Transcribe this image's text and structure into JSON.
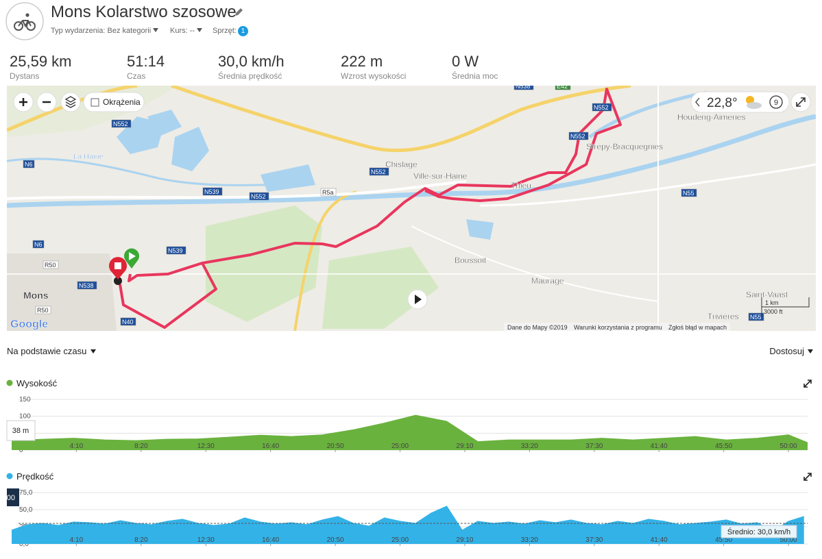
{
  "header": {
    "title": "Mons Kolarstwo szosowe",
    "event_type_label": "Typ wydarzenia:",
    "event_type": "Bez kategorii",
    "course_label": "Kurs:",
    "course": "--",
    "gear_label": "Sprzęt:",
    "gear_count": "1"
  },
  "stats": [
    {
      "value": "25,59 km",
      "label": "Dystans"
    },
    {
      "value": "51:14",
      "label": "Czas"
    },
    {
      "value": "30,0 km/h",
      "label": "Średnia prędkość"
    },
    {
      "value": "222 m",
      "label": "Wzrost wysokości"
    },
    {
      "value": "0 W",
      "label": "Średnia moc"
    }
  ],
  "map": {
    "laps_label": "Okrążenia",
    "temperature": "22,8°",
    "wind": "9",
    "places": [
      "Mons",
      "Boussoit",
      "Maurage",
      "Chislage",
      "Ville-sur-Haine",
      "Thieu",
      "Strépy-Bracquegnies",
      "Houdeng-Aimeries",
      "Saint-Vaast",
      "Trivières",
      "La Haine"
    ],
    "roads": [
      "N552",
      "N552",
      "N552",
      "N552",
      "N552",
      "N538",
      "N538",
      "N539",
      "N539",
      "N6",
      "N6",
      "R50",
      "R50",
      "N40",
      "N55",
      "N55",
      "E42",
      "R5a"
    ],
    "scale_metric": "1 km",
    "scale_imperial": "3000 ft",
    "logo": "Google",
    "attribution": "Dane do Mapy ©2019",
    "terms": "Warunki korzystania z programu",
    "report": "Zgłoś błąd w mapach"
  },
  "chart_controls": {
    "basis": "Na podstawie czasu",
    "customize": "Dostosuj"
  },
  "chart_data": [
    {
      "type": "area",
      "title": "Wysokość",
      "color": "#6ab23e",
      "grid": true,
      "tooltip": "38 m",
      "x": [
        0,
        120,
        240,
        360,
        480,
        600,
        720,
        840,
        960,
        1080,
        1200,
        1320,
        1440,
        1560,
        1680,
        1800,
        1920,
        2040,
        2160,
        2280,
        2400,
        2520,
        2640,
        2760,
        2880,
        3000,
        3074
      ],
      "values": [
        28,
        32,
        35,
        30,
        28,
        32,
        33,
        38,
        44,
        40,
        45,
        60,
        80,
        103,
        85,
        25,
        30,
        30,
        30,
        35,
        30,
        35,
        40,
        30,
        35,
        45,
        22
      ],
      "xlim": [
        0,
        3074
      ],
      "xticks": [
        {
          "value": 250,
          "label": "4:10"
        },
        {
          "value": 500,
          "label": "8:20"
        },
        {
          "value": 750,
          "label": "12:30"
        },
        {
          "value": 1000,
          "label": "16:40"
        },
        {
          "value": 1250,
          "label": "20:50"
        },
        {
          "value": 1500,
          "label": "25:00"
        },
        {
          "value": 1750,
          "label": "29:10"
        },
        {
          "value": 2000,
          "label": "33:20"
        },
        {
          "value": 2250,
          "label": "37:30"
        },
        {
          "value": 2500,
          "label": "41:40"
        },
        {
          "value": 2750,
          "label": "45:50"
        },
        {
          "value": 3000,
          "label": "50:00"
        }
      ],
      "ylim": [
        0,
        150
      ],
      "yticks": [
        0,
        50,
        100,
        150
      ]
    },
    {
      "type": "area",
      "title": "Prędkość",
      "color": "#33b2e8",
      "grid": true,
      "tooltip": "00",
      "x": [
        0,
        60,
        120,
        180,
        240,
        300,
        360,
        420,
        480,
        540,
        600,
        660,
        720,
        780,
        840,
        900,
        960,
        1020,
        1080,
        1140,
        1200,
        1260,
        1320,
        1380,
        1440,
        1500,
        1560,
        1620,
        1680,
        1740,
        1800,
        1860,
        1920,
        1980,
        2040,
        2100,
        2160,
        2220,
        2280,
        2340,
        2400,
        2460,
        2520,
        2580,
        2640,
        2700,
        2760,
        2820,
        2880,
        2940,
        3000,
        3060
      ],
      "values": [
        20,
        28,
        30,
        27,
        32,
        31,
        29,
        34,
        30,
        28,
        33,
        36,
        30,
        27,
        29,
        38,
        32,
        29,
        31,
        28,
        35,
        40,
        30,
        26,
        38,
        33,
        30,
        45,
        55,
        20,
        33,
        30,
        32,
        29,
        34,
        31,
        35,
        30,
        28,
        33,
        30,
        36,
        33,
        28,
        30,
        32,
        35,
        29,
        31,
        18,
        33,
        40
      ],
      "xlim": [
        0,
        3074
      ],
      "xticks": [
        {
          "value": 250,
          "label": "4:10"
        },
        {
          "value": 500,
          "label": "8:20"
        },
        {
          "value": 750,
          "label": "12:30"
        },
        {
          "value": 1000,
          "label": "16:40"
        },
        {
          "value": 1250,
          "label": "20:50"
        },
        {
          "value": 1500,
          "label": "25:00"
        },
        {
          "value": 1750,
          "label": "29:10"
        },
        {
          "value": 2000,
          "label": "33:20"
        },
        {
          "value": 2250,
          "label": "37:30"
        },
        {
          "value": 2500,
          "label": "41:40"
        },
        {
          "value": 2750,
          "label": "45:50"
        },
        {
          "value": 3000,
          "label": "50:00"
        }
      ],
      "ylim": [
        0,
        75
      ],
      "yticks": [
        {
          "value": 0,
          "label": "0,0"
        },
        {
          "value": 25,
          "label": "25,0"
        },
        {
          "value": 50,
          "label": "50,0"
        },
        {
          "value": 75,
          "label": "75,0"
        }
      ],
      "reference_line": 30,
      "reference_label": "Średnio: 30,0 km/h"
    }
  ]
}
